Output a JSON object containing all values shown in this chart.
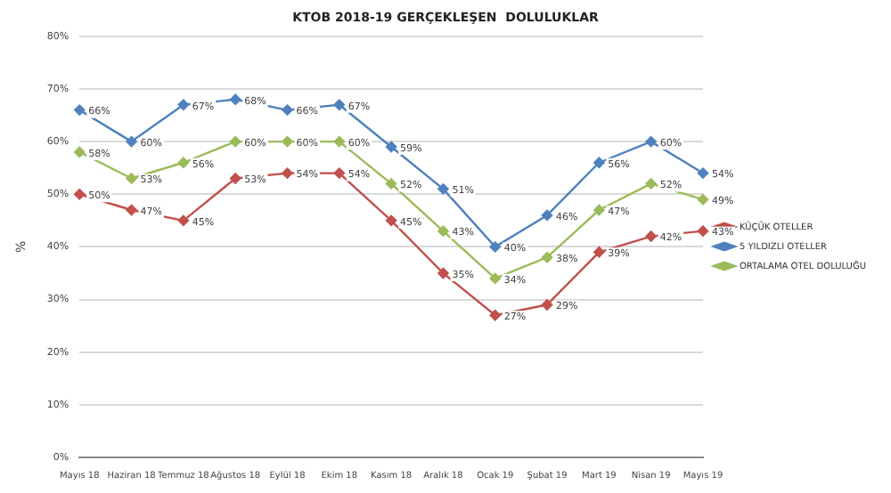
{
  "chart_data": {
    "type": "line",
    "title": "KTOB 2018-19 GERÇEKLEŞEN  DOLULUKLAR",
    "ylabel": "%",
    "categories": [
      "Mayıs 18",
      "Haziran 18",
      "Temmuz 18",
      "Ağustos 18",
      "Eylül 18",
      "Ekim 18",
      "Kasım 18",
      "Aralık 18",
      "Ocak 19",
      "Şubat 19",
      "Mart 19",
      "Nisan 19",
      "Mayıs 19"
    ],
    "series": [
      {
        "name": "KÜÇÜK OTELLER",
        "color": "#c0504d",
        "values": [
          50,
          47,
          45,
          53,
          54,
          54,
          45,
          35,
          27,
          29,
          39,
          42,
          43
        ],
        "value_labels": [
          "50%",
          "47%",
          "45%",
          "53%",
          "54%",
          "54%",
          "45%",
          "35%",
          "27%",
          "29%",
          "39%",
          "42%",
          "43%"
        ]
      },
      {
        "name": "5 YILDIZLI OTELLER",
        "color": "#4f81bd",
        "values": [
          66,
          60,
          67,
          68,
          66,
          67,
          59,
          51,
          40,
          46,
          56,
          60,
          54
        ],
        "value_labels": [
          "66%",
          "60%",
          "67%",
          "68%",
          "66%",
          "67%",
          "59%",
          "51%",
          "40%",
          "46%",
          "56%",
          "60%",
          "54%"
        ]
      },
      {
        "name": "ORTALAMA OTEL DOLULUĞU",
        "color": "#9bbb59",
        "values": [
          58,
          53,
          56,
          60,
          60,
          60,
          52,
          43,
          34,
          38,
          47,
          52,
          49
        ],
        "value_labels": [
          "58%",
          "53%",
          "56%",
          "60%",
          "60%",
          "60%",
          "52%",
          "43%",
          "34%",
          "38%",
          "47%",
          "52%",
          "49%"
        ]
      }
    ],
    "ylim": [
      0,
      80
    ],
    "yticks": [
      {
        "value": 0,
        "label": "0%"
      },
      {
        "value": 10,
        "label": "10%"
      },
      {
        "value": 20,
        "label": "20%"
      },
      {
        "value": 30,
        "label": "30%"
      },
      {
        "value": 40,
        "label": "40%"
      },
      {
        "value": 50,
        "label": "50%"
      },
      {
        "value": 60,
        "label": "60%"
      },
      {
        "value": 70,
        "label": "70%"
      },
      {
        "value": 80,
        "label": "80%"
      }
    ],
    "grid": "y",
    "legend": "right",
    "marker": "diamond",
    "line_style": "solid"
  }
}
